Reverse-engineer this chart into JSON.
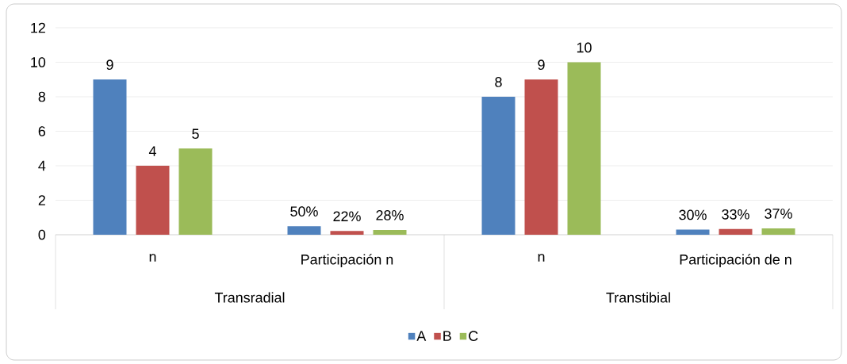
{
  "chart_data": {
    "type": "bar",
    "categories": [
      "n",
      "Participación n",
      "n",
      "Participación de n"
    ],
    "annotations": [
      "Transradial",
      "Transtibial"
    ],
    "series": [
      {
        "name": "A",
        "color": "#4f81bd",
        "values": [
          9,
          0.5,
          8,
          0.3
        ],
        "value_labels": [
          "9",
          "50%",
          "8",
          "30%"
        ]
      },
      {
        "name": "B",
        "color": "#c0504d",
        "values": [
          4,
          0.22,
          9,
          0.33
        ],
        "value_labels": [
          "4",
          "22%",
          "9",
          "33%"
        ]
      },
      {
        "name": "C",
        "color": "#9bbb59",
        "values": [
          5,
          0.28,
          10,
          0.37
        ],
        "value_labels": [
          "5",
          "28%",
          "10",
          "37%"
        ]
      }
    ],
    "ylim": [
      0,
      12
    ],
    "yticks": [
      0,
      2,
      4,
      6,
      8,
      10,
      12
    ],
    "grid": "y",
    "legend": "bottom"
  }
}
